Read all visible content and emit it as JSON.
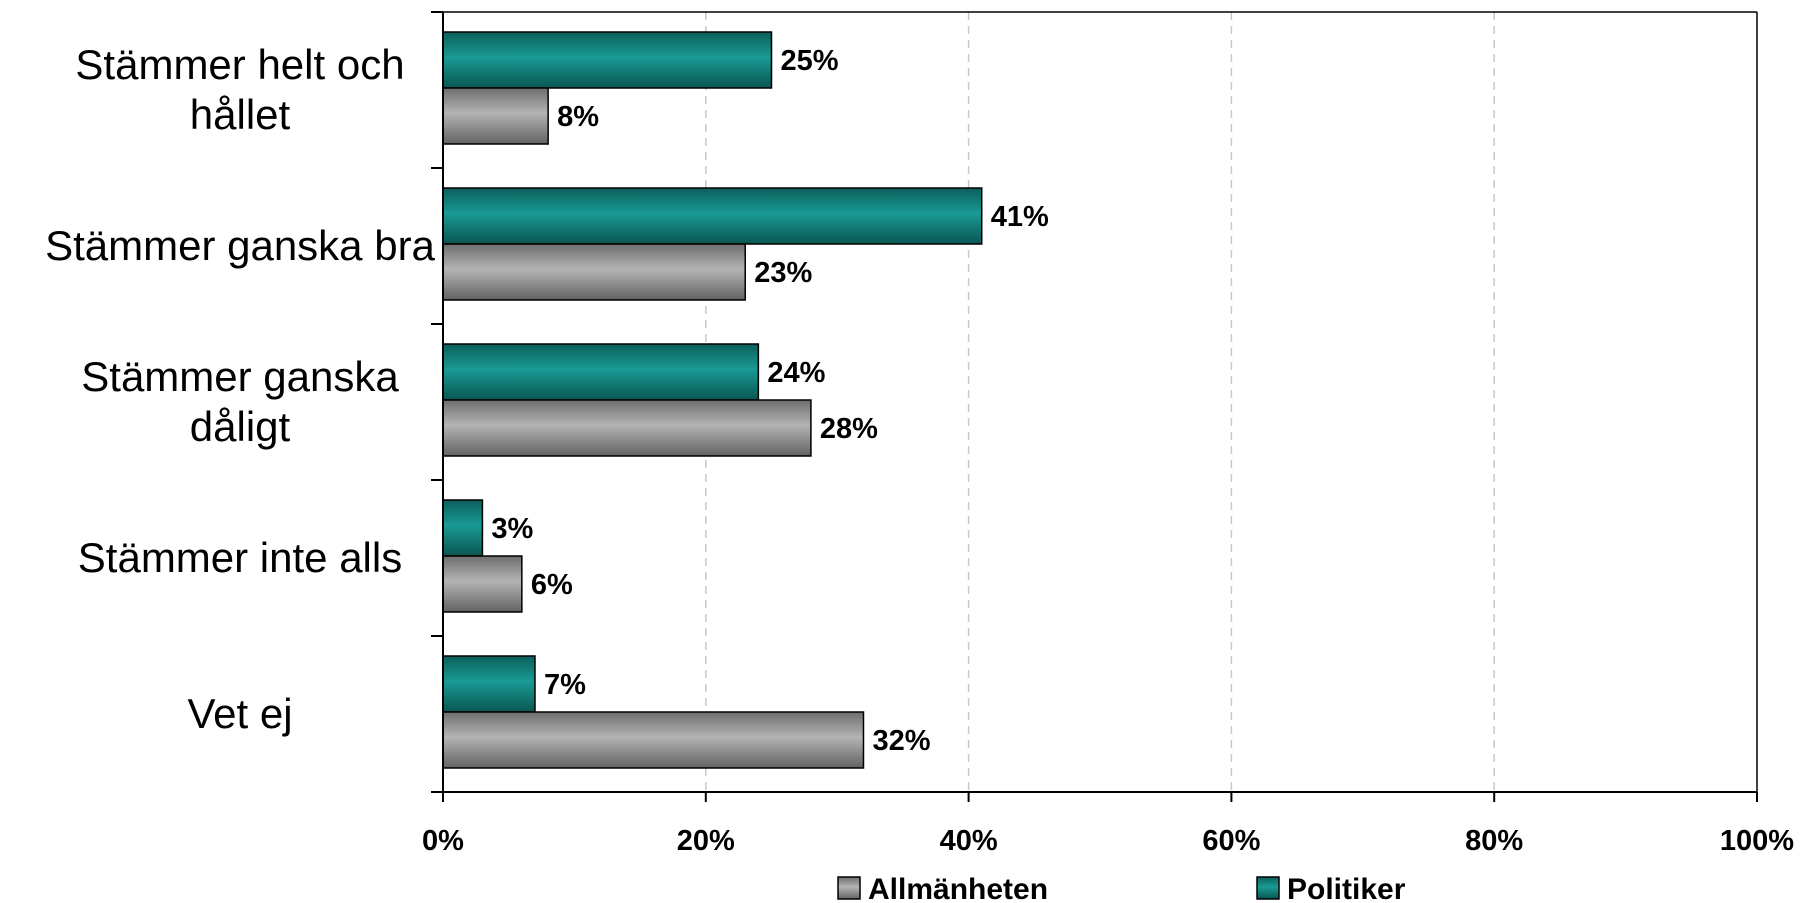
{
  "chart_data": {
    "type": "bar",
    "orientation": "horizontal",
    "categories": [
      [
        "Stämmer helt och",
        "hållet"
      ],
      [
        "Stämmer ganska bra"
      ],
      [
        "Stämmer ganska",
        "dåligt"
      ],
      [
        "Stämmer inte alls"
      ],
      [
        "Vet ej"
      ]
    ],
    "series": [
      {
        "name": "Politiker",
        "values": [
          25,
          41,
          24,
          3,
          7
        ],
        "color": "#0f7d78"
      },
      {
        "name": "Allmänheten",
        "values": [
          8,
          23,
          28,
          6,
          32
        ],
        "color": "#8c8c8c"
      }
    ],
    "xlim": [
      0,
      100
    ],
    "x_ticks": [
      0,
      20,
      40,
      60,
      80,
      100
    ],
    "value_suffix": "%",
    "gridlines": "vertical-dashed",
    "legend": {
      "placement": "bottom",
      "order": [
        "Allmänheten",
        "Politiker"
      ]
    }
  }
}
